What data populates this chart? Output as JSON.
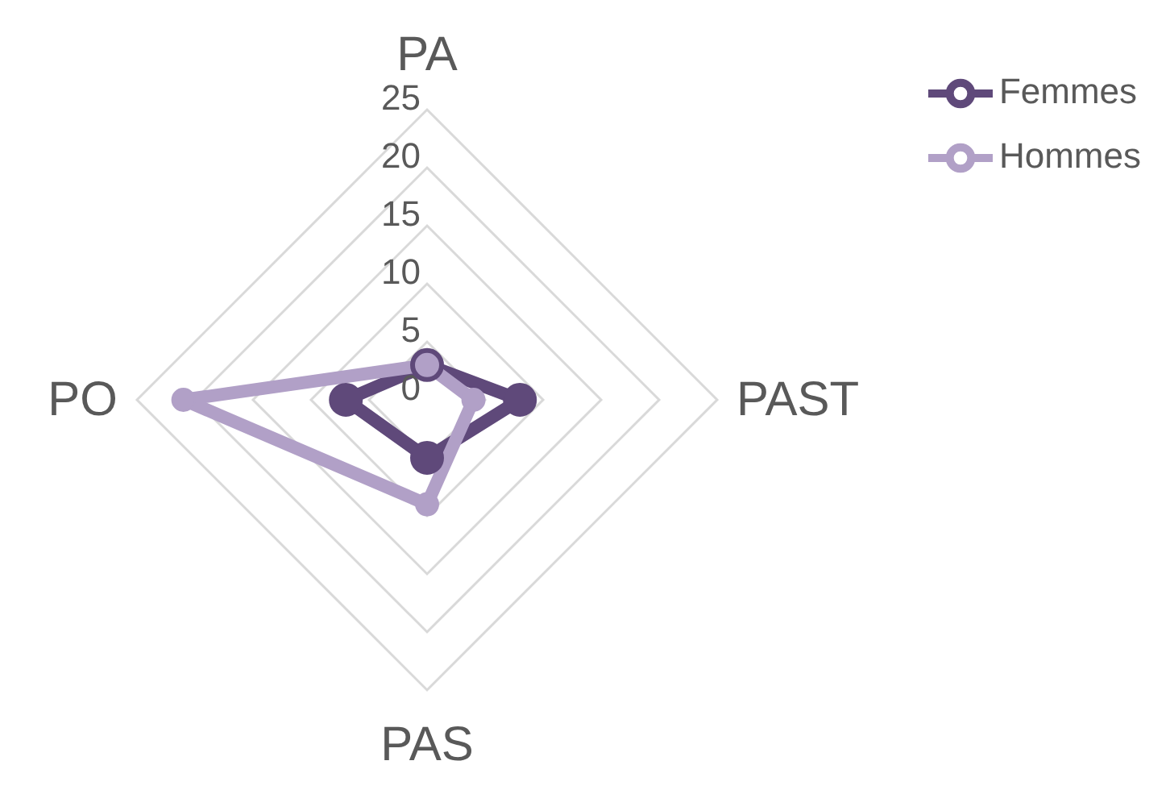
{
  "chart_data": {
    "type": "radar",
    "categories": [
      "PA",
      "PAST",
      "PAS",
      "PO"
    ],
    "series": [
      {
        "name": "Femmes",
        "color": "#5f497a",
        "values": [
          3,
          8,
          5,
          7
        ]
      },
      {
        "name": "Hommes",
        "color": "#b1a0c7",
        "values": [
          3,
          4,
          9,
          21
        ]
      }
    ],
    "ylim": [
      0,
      25
    ],
    "yticks": [
      0,
      5,
      10,
      15,
      20,
      25
    ],
    "grid": true,
    "legend": "top right",
    "marker": "circle",
    "line_style": "solid"
  }
}
